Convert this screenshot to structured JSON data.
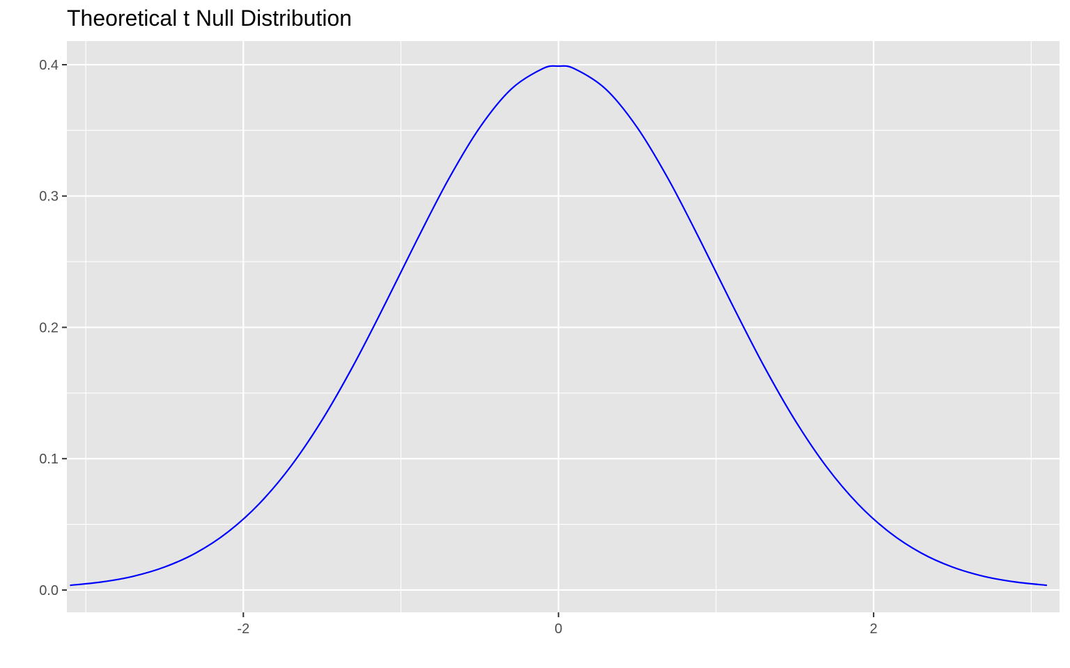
{
  "chart_data": {
    "type": "line",
    "title": "Theoretical t Null Distribution",
    "xlabel": "",
    "ylabel": "",
    "xlim": [
      -3.12,
      3.18
    ],
    "ylim": [
      -0.017,
      0.418
    ],
    "x_ticks": [
      -2,
      0,
      2
    ],
    "x_tick_labels": [
      "-2",
      "0",
      "2"
    ],
    "x_minor_ticks": [
      -3,
      -1,
      1,
      3
    ],
    "y_ticks": [
      0.0,
      0.1,
      0.2,
      0.3,
      0.4
    ],
    "y_tick_labels": [
      "0.0",
      "0.1",
      "0.2",
      "0.3",
      "0.4"
    ],
    "y_minor_ticks": [
      0.05,
      0.15,
      0.25,
      0.35
    ],
    "grid": true,
    "panel_background": "#e5e5e5",
    "grid_color": "#ffffff",
    "series": [
      {
        "color": "#0000ff",
        "x": [
          -3.1,
          -2.9,
          -2.7,
          -2.5,
          -2.3,
          -2.1,
          -1.9,
          -1.7,
          -1.5,
          -1.3,
          -1.1,
          -0.9,
          -0.7,
          -0.5,
          -0.3,
          -0.1,
          0,
          0.1,
          0.3,
          0.5,
          0.7,
          0.9,
          1.1,
          1.3,
          1.5,
          1.7,
          1.9,
          2.1,
          2.3,
          2.5,
          2.7,
          2.9,
          3.1
        ],
        "y": [
          0.0036,
          0.0061,
          0.0104,
          0.0175,
          0.0283,
          0.044,
          0.0656,
          0.094,
          0.1295,
          0.1714,
          0.2179,
          0.2661,
          0.3123,
          0.3521,
          0.3814,
          0.397,
          0.3989,
          0.397,
          0.3814,
          0.3521,
          0.3123,
          0.2661,
          0.2179,
          0.1714,
          0.1295,
          0.094,
          0.0656,
          0.044,
          0.0283,
          0.0175,
          0.0104,
          0.0061,
          0.0036
        ]
      }
    ]
  }
}
